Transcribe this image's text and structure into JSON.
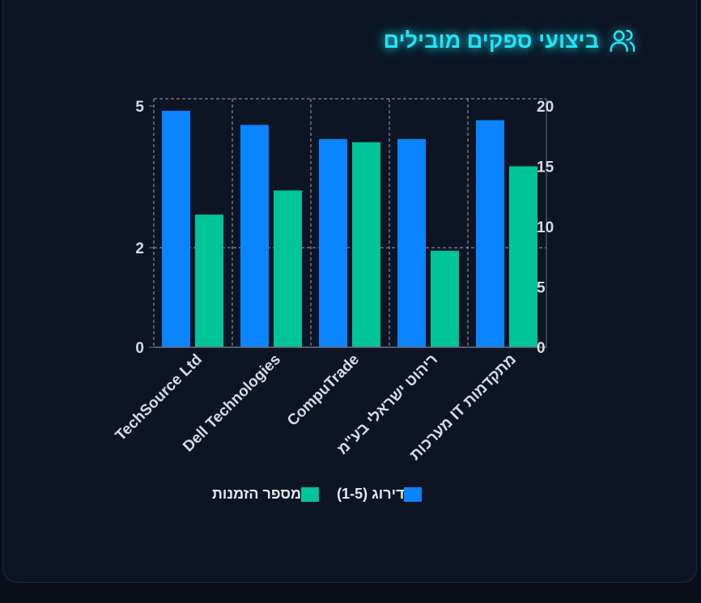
{
  "header": {
    "title": "ביצועי ספקים מובילים",
    "icon": "users-icon",
    "accent": "#22e4f5"
  },
  "chart_data": {
    "type": "bar",
    "categories": [
      "TechSource Ltd",
      "Dell Technologies",
      "CompuTrade",
      "ריהוט ישראלי בע\"מ",
      "מערכות IT מתקדמות"
    ],
    "series": [
      {
        "name": "דירוג (1-5)",
        "axis": "left",
        "color": "#0a84ff",
        "values": [
          4.9,
          4.6,
          4.3,
          4.3,
          4.7
        ]
      },
      {
        "name": "מספר הזמנות",
        "axis": "right",
        "color": "#00c49a",
        "values": [
          11,
          13,
          17,
          8,
          15
        ]
      }
    ],
    "y_left": {
      "ticks": [
        0,
        2,
        5
      ],
      "ylim": [
        0,
        5
      ]
    },
    "y_right": {
      "ticks": [
        0,
        5,
        10,
        15,
        20
      ],
      "ylim": [
        0,
        20
      ]
    },
    "grid": true,
    "legend_position": "bottom"
  }
}
